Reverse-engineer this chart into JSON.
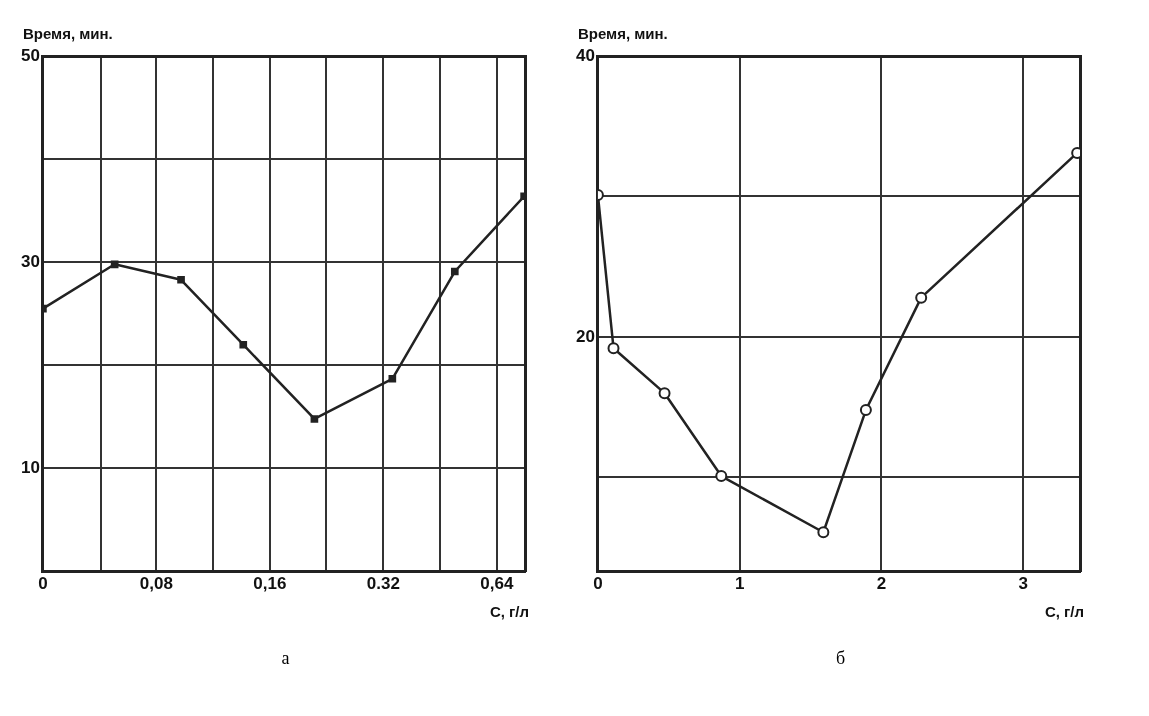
{
  "chart_data": [
    {
      "type": "line",
      "xlabel": "С, г/л",
      "ylabel": "Время, мин.",
      "annotations": [
        "а"
      ],
      "color": "#222222",
      "marker": "square",
      "grid": true,
      "log": "x",
      "x": [
        0.04,
        0.062,
        0.093,
        0.136,
        0.21,
        0.338,
        0.495,
        0.756
      ],
      "values": [
        25.5,
        29.8,
        28.3,
        22.0,
        14.8,
        18.7,
        29.1,
        36.4
      ],
      "xlim": [
        0.04,
        0.76
      ],
      "xticks": [
        {
          "value": 0.04,
          "label": "0"
        },
        {
          "value": 0.057,
          "label": null
        },
        {
          "value": 0.08,
          "label": "0,08"
        },
        {
          "value": 0.113,
          "label": null
        },
        {
          "value": 0.16,
          "label": "0,16"
        },
        {
          "value": 0.226,
          "label": null
        },
        {
          "value": 0.32,
          "label": "0.32"
        },
        {
          "value": 0.453,
          "label": null
        },
        {
          "value": 0.64,
          "label": "0,64"
        }
      ],
      "ylim": [
        0,
        50
      ],
      "yticks": [
        10,
        {
          "value": 20,
          "label": null
        },
        30,
        {
          "value": 40,
          "label": null
        },
        50
      ]
    },
    {
      "type": "line",
      "xlabel": "С, г/л",
      "ylabel": "Время, мин.",
      "annotations": [
        "б"
      ],
      "color": "#222222",
      "marker": "circle",
      "grid": true,
      "x": [
        0,
        0.11,
        0.47,
        0.87,
        1.59,
        1.89,
        2.28,
        3.38
      ],
      "values": [
        30.1,
        19.2,
        16.0,
        10.1,
        6.1,
        14.8,
        22.8,
        33.1
      ],
      "xlim": [
        0,
        3.4
      ],
      "xticks": [
        0,
        1,
        2,
        3
      ],
      "ylim": [
        3.3,
        40
      ],
      "yticks": [
        {
          "value": 10,
          "label": null
        },
        20,
        {
          "value": 30,
          "label": null
        },
        40
      ]
    }
  ]
}
